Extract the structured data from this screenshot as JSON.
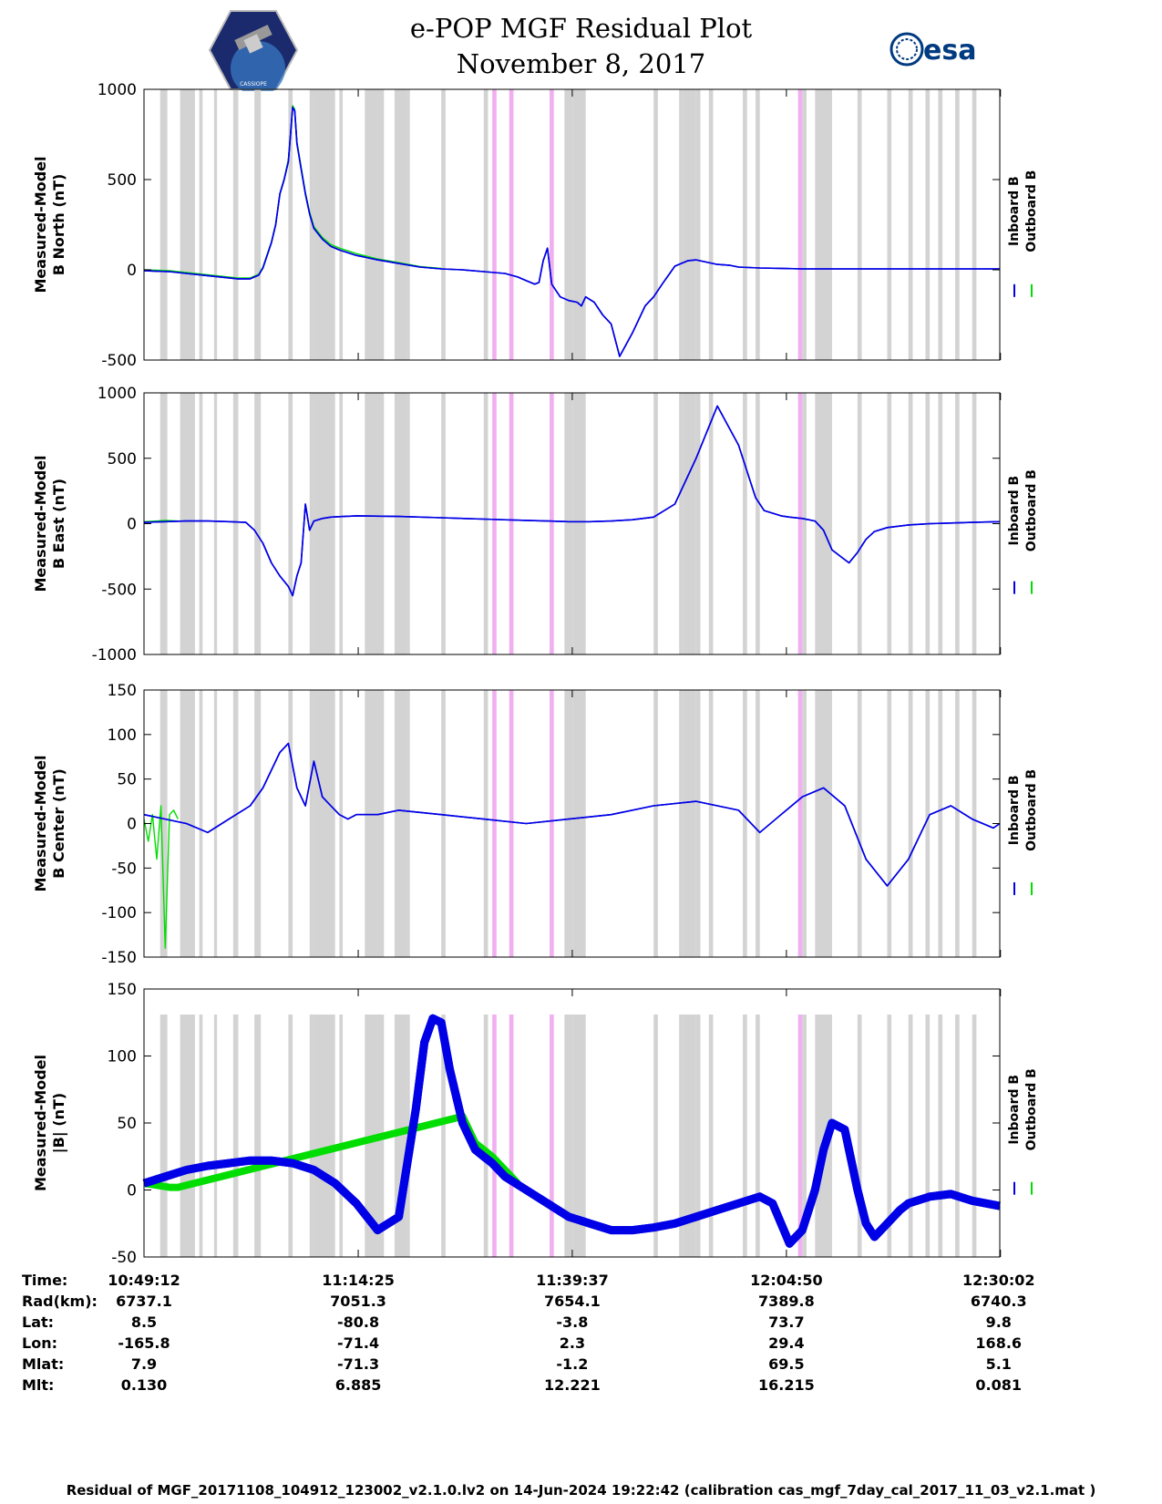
{
  "header": {
    "title_line1": "e-POP MGF Residual Plot",
    "title_line2": "November 8, 2017",
    "left_logo": "CASSIOPE",
    "right_logo": "esa"
  },
  "legend_labels": [
    "Inboard B",
    "Outboard B"
  ],
  "colors": {
    "inboard": "#0000e6",
    "outboard": "#00dd00",
    "gap_gray": "#d3d3d3",
    "gap_pink": "#f0b0f0"
  },
  "chart_data": [
    {
      "type": "line",
      "name": "north",
      "ylabel": [
        "Measured-Model",
        "B North (nT)"
      ],
      "ylim": [
        -500,
        1000
      ],
      "yticks": [
        -500,
        0,
        500,
        1000
      ],
      "ytick_labels": [
        "-500",
        "0",
        "500",
        "1000"
      ],
      "x_minutes_range": [
        0,
        100.83
      ],
      "series": [
        {
          "name": "Inboard B",
          "x": [
            0,
            3,
            6,
            10,
            14,
            18,
            22,
            25,
            27,
            28,
            29,
            30,
            31,
            32,
            33,
            34,
            34.5,
            35,
            35.5,
            36,
            37,
            38,
            39,
            40,
            42,
            44,
            46,
            48,
            50,
            52,
            55,
            60,
            65,
            70,
            75,
            80,
            85,
            88,
            90,
            92,
            93,
            94,
            95,
            96,
            98,
            100,
            102,
            103,
            104,
            106,
            108,
            110,
            112,
            115,
            118,
            120,
            122,
            125,
            128,
            130,
            132,
            135,
            138,
            140,
            145,
            150,
            155,
            160,
            165,
            170,
            175,
            180,
            185,
            190,
            195,
            201.5
          ],
          "y": [
            -5,
            -8,
            -10,
            -20,
            -30,
            -40,
            -50,
            -50,
            -30,
            10,
            80,
            150,
            250,
            420,
            500,
            600,
            750,
            900,
            880,
            700,
            560,
            420,
            310,
            230,
            170,
            130,
            110,
            95,
            80,
            70,
            55,
            35,
            15,
            5,
            0,
            -10,
            -20,
            -40,
            -60,
            -80,
            -70,
            50,
            120,
            -80,
            -150,
            -170,
            -180,
            -200,
            -150,
            -180,
            -250,
            -300,
            -480,
            -350,
            -200,
            -150,
            -80,
            20,
            50,
            55,
            45,
            30,
            25,
            15,
            10,
            8,
            5,
            5,
            5,
            5,
            5,
            5,
            5,
            5,
            5,
            5
          ]
        },
        {
          "name": "Outboard B",
          "x": [
            0,
            3,
            6,
            10,
            14,
            18,
            22,
            25,
            27,
            28,
            29,
            30,
            31,
            32,
            33,
            34,
            34.5,
            35,
            35.5,
            36,
            37,
            38,
            39,
            40,
            42,
            44,
            46,
            48,
            50,
            52,
            55,
            60,
            65,
            70
          ],
          "y": [
            0,
            -2,
            -5,
            -15,
            -25,
            -35,
            -45,
            -45,
            -25,
            15,
            85,
            155,
            255,
            425,
            505,
            610,
            760,
            910,
            890,
            710,
            570,
            430,
            320,
            240,
            180,
            140,
            120,
            105,
            90,
            78,
            60,
            40,
            18,
            8
          ]
        }
      ]
    },
    {
      "type": "line",
      "name": "east",
      "ylabel": [
        "Measured-Model",
        "B East (nT)"
      ],
      "ylim": [
        -1000,
        1000
      ],
      "yticks": [
        -1000,
        -500,
        0,
        500,
        1000
      ],
      "ytick_labels": [
        "-1000",
        "-500",
        "0",
        "500",
        "1000"
      ],
      "x_minutes_range": [
        0,
        100.83
      ],
      "series": [
        {
          "name": "Inboard B",
          "x": [
            0,
            5,
            10,
            15,
            20,
            24,
            26,
            28,
            30,
            32,
            34,
            35,
            36,
            37,
            38,
            39,
            40,
            42,
            44,
            50,
            60,
            70,
            80,
            90,
            95,
            100,
            105,
            110,
            115,
            120,
            125,
            130,
            135,
            140,
            144,
            146,
            148,
            150,
            152,
            155,
            158,
            160,
            162,
            164,
            166,
            168,
            170,
            172,
            175,
            180,
            185,
            190,
            195,
            201.5
          ],
          "y": [
            10,
            15,
            20,
            20,
            15,
            10,
            -50,
            -150,
            -300,
            -400,
            -480,
            -550,
            -400,
            -300,
            150,
            -50,
            20,
            40,
            50,
            60,
            55,
            45,
            35,
            25,
            20,
            15,
            15,
            20,
            30,
            50,
            150,
            500,
            900,
            600,
            200,
            100,
            80,
            60,
            50,
            40,
            20,
            -50,
            -200,
            -250,
            -300,
            -220,
            -120,
            -60,
            -30,
            -10,
            0,
            5,
            10,
            15
          ]
        },
        {
          "name": "Outboard B",
          "x": [
            0,
            3,
            5,
            8,
            10
          ],
          "y": [
            15,
            20,
            25,
            20,
            18
          ]
        }
      ]
    },
    {
      "type": "line",
      "name": "center",
      "ylabel": [
        "Measured-Model",
        "B Center (nT)"
      ],
      "ylim": [
        -150,
        150
      ],
      "yticks": [
        -150,
        -100,
        -50,
        0,
        50,
        100,
        150
      ],
      "ytick_labels": [
        "-150",
        "-100",
        "-50",
        "0",
        "50",
        "100",
        "150"
      ],
      "x_minutes_range": [
        0,
        100.83
      ],
      "series": [
        {
          "name": "Inboard B",
          "x": [
            0,
            5,
            10,
            15,
            20,
            25,
            28,
            30,
            32,
            34,
            36,
            38,
            40,
            42,
            44,
            46,
            48,
            50,
            55,
            60,
            70,
            80,
            90,
            100,
            110,
            120,
            130,
            140,
            145,
            150,
            155,
            160,
            165,
            170,
            175,
            180,
            182,
            185,
            190,
            195,
            200,
            201.5
          ],
          "y": [
            10,
            5,
            0,
            -10,
            5,
            20,
            40,
            60,
            80,
            90,
            40,
            20,
            70,
            30,
            20,
            10,
            5,
            10,
            10,
            15,
            10,
            5,
            0,
            5,
            10,
            20,
            25,
            15,
            -10,
            10,
            30,
            40,
            20,
            -40,
            -70,
            -40,
            -20,
            10,
            20,
            5,
            -5,
            0
          ]
        },
        {
          "name": "Outboard B",
          "x": [
            0,
            1,
            2,
            3,
            4,
            5,
            6,
            7,
            8
          ],
          "y": [
            5,
            -20,
            10,
            -40,
            20,
            -140,
            10,
            15,
            5
          ]
        }
      ]
    },
    {
      "type": "line",
      "name": "magnitude",
      "ylabel": [
        "Measured-Model",
        "|B| (nT)"
      ],
      "ylim": [
        -50,
        150
      ],
      "yticks": [
        -50,
        0,
        50,
        100,
        150
      ],
      "ytick_labels": [
        "-50",
        "0",
        "50",
        "100",
        "150"
      ],
      "x_minutes_range": [
        0,
        100.83
      ],
      "series": [
        {
          "name": "Inboard B",
          "x": [
            0,
            5,
            10,
            15,
            20,
            25,
            30,
            35,
            40,
            45,
            50,
            55,
            60,
            62,
            64,
            66,
            68,
            70,
            72,
            75,
            78,
            80,
            82,
            85,
            90,
            95,
            100,
            105,
            110,
            115,
            120,
            125,
            130,
            135,
            140,
            145,
            148,
            150,
            152,
            155,
            158,
            160,
            162,
            165,
            168,
            170,
            172,
            175,
            178,
            180,
            185,
            190,
            195,
            201.5
          ],
          "y": [
            5,
            10,
            15,
            18,
            20,
            22,
            22,
            20,
            15,
            5,
            -10,
            -30,
            -20,
            20,
            60,
            110,
            128,
            125,
            90,
            50,
            30,
            25,
            20,
            10,
            0,
            -10,
            -20,
            -25,
            -30,
            -30,
            -28,
            -25,
            -20,
            -15,
            -10,
            -5,
            -10,
            -25,
            -40,
            -30,
            0,
            30,
            50,
            45,
            0,
            -25,
            -35,
            -25,
            -15,
            -10,
            -5,
            -3,
            -8,
            -12
          ]
        },
        {
          "name": "Outboard B",
          "x": [
            0,
            2,
            4,
            6,
            8,
            75,
            78,
            80,
            82,
            85,
            88
          ],
          "y": [
            5,
            4,
            3,
            2,
            2,
            55,
            35,
            30,
            25,
            15,
            5
          ]
        }
      ]
    }
  ],
  "x_ticks": {
    "minutes": [
      0,
      25.22,
      50.42,
      75.63,
      100.83
    ],
    "labels": [
      "10:49:12",
      "11:14:25",
      "11:39:37",
      "12:04:50",
      "12:30:02"
    ]
  },
  "info_table": {
    "rows": [
      {
        "label": "Time:",
        "values": [
          "10:49:12",
          "11:14:25",
          "11:39:37",
          "12:04:50",
          "12:30:02"
        ]
      },
      {
        "label": "Rad(km):",
        "values": [
          "6737.1",
          "7051.3",
          "7654.1",
          "7389.8",
          "6740.3"
        ]
      },
      {
        "label": "Lat:",
        "values": [
          "8.5",
          "-80.8",
          "-3.8",
          "73.7",
          "9.8"
        ]
      },
      {
        "label": "Lon:",
        "values": [
          "-165.8",
          "-71.4",
          "2.3",
          "29.4",
          "168.6"
        ]
      },
      {
        "label": "Mlat:",
        "values": [
          "7.9",
          "-71.3",
          "-1.2",
          "69.5",
          "5.1"
        ]
      },
      {
        "label": "Mlt:",
        "values": [
          "0.130",
          "6.885",
          "12.221",
          "16.215",
          "0.081"
        ]
      }
    ]
  },
  "footer": "Residual of MGF_20171108_104912_123002_v2.1.0.lv2 on 14-Jun-2024 19:22:42 (calibration cas_mgf_7day_cal_2017_11_03_v2.1.mat )"
}
